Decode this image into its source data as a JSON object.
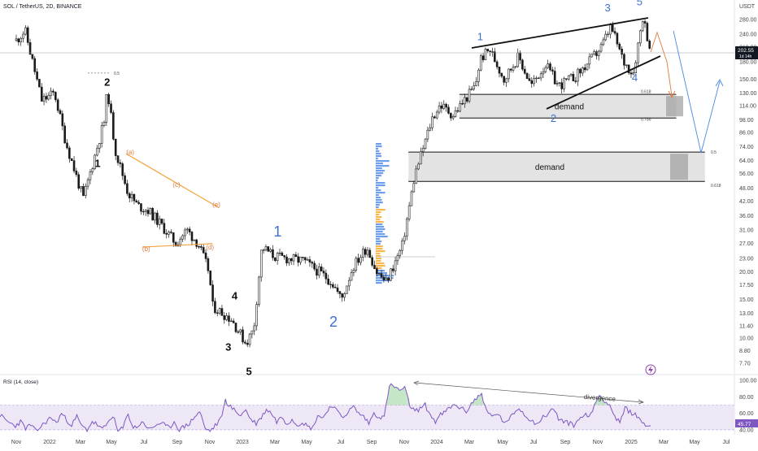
{
  "header": {
    "title": "SOL / TetherUS, 2D, BINANCE",
    "currency": "USDT"
  },
  "price_badge": {
    "value": "202.55",
    "sub": "1d 14h",
    "color": "#131722"
  },
  "colors": {
    "candle": "#1a1a1a",
    "rsi_line": "#7e57c2",
    "rsi_band": "#ede7f6",
    "blue": "#3d6fd0",
    "orange": "#f4a340",
    "demand": "#d9d9d9",
    "volume_profile": "#4a86e8"
  },
  "chart_data": [
    {
      "type": "line",
      "scale": "log",
      "ylim": [
        7.0,
        320
      ],
      "y_ticks": [
        "280.00",
        "240.00",
        "210.00",
        "180.00",
        "150.00",
        "130.00",
        "114.00",
        "98.00",
        "86.00",
        "74.00",
        "64.00",
        "56.00",
        "48.00",
        "42.00",
        "36.00",
        "31.00",
        "27.00",
        "23.00",
        "20.00",
        "17.50",
        "15.00",
        "13.00",
        "11.40",
        "10.00",
        "8.80",
        "7.70"
      ],
      "x_ticks": [
        "Nov",
        "2022",
        "Mar",
        "May",
        "Jul",
        "Sep",
        "Nov",
        "2023",
        "Mar",
        "May",
        "Jul",
        "Sep",
        "Nov",
        "2024",
        "Mar",
        "May",
        "Jul",
        "Sep",
        "Nov",
        "2025",
        "Mar",
        "May",
        "Jul"
      ],
      "price_points": [
        [
          0,
          225
        ],
        [
          0.55,
          250
        ],
        [
          1.6,
          120
        ],
        [
          2.4,
          130
        ],
        [
          3.1,
          78
        ],
        [
          4.2,
          43
        ],
        [
          5.6,
          102
        ],
        [
          5.7,
          140
        ],
        [
          6.2,
          72
        ],
        [
          7,
          46
        ],
        [
          7.6,
          40
        ],
        [
          8.3,
          38
        ],
        [
          9.2,
          32
        ],
        [
          10,
          27
        ],
        [
          10.7,
          31
        ],
        [
          11.4,
          27
        ],
        [
          12.1,
          20
        ],
        [
          12.3,
          14
        ],
        [
          13.5,
          12.2
        ],
        [
          14.4,
          9.5
        ],
        [
          14.9,
          11
        ],
        [
          15.4,
          26
        ],
        [
          16.2,
          23.5
        ],
        [
          17,
          23
        ],
        [
          18,
          22.5
        ],
        [
          19,
          20
        ],
        [
          19.8,
          18
        ],
        [
          20.4,
          15
        ],
        [
          21.1,
          21
        ],
        [
          22,
          26
        ],
        [
          22.6,
          20
        ],
        [
          23.2,
          18
        ],
        [
          24.2,
          26
        ],
        [
          25,
          55
        ],
        [
          26.1,
          100
        ],
        [
          26.6,
          115
        ],
        [
          27.4,
          103
        ],
        [
          28.1,
          120
        ],
        [
          28.8,
          140
        ],
        [
          29.1,
          185
        ],
        [
          29.7,
          205
        ],
        [
          30.6,
          150
        ],
        [
          31.5,
          190
        ],
        [
          32.3,
          140
        ],
        [
          33.2,
          175
        ],
        [
          34,
          140
        ],
        [
          35.1,
          155
        ],
        [
          35.8,
          175
        ],
        [
          36.7,
          210
        ],
        [
          37.3,
          260
        ],
        [
          38.1,
          180
        ],
        [
          38.7,
          160
        ],
        [
          39.3,
          290
        ],
        [
          39.8,
          202
        ]
      ],
      "series": [
        {
          "name": "",
          "values": []
        }
      ],
      "waves": [
        {
          "label": "2",
          "color": "black",
          "x": 5.7,
          "price": 140
        },
        {
          "label": "1",
          "color": "black",
          "x": 5.1,
          "price": 60
        },
        {
          "label": "4",
          "color": "black",
          "x": 13.7,
          "price": 15
        },
        {
          "label": "3",
          "color": "black",
          "x": 13.3,
          "price": 8.8
        },
        {
          "label": "5",
          "color": "black",
          "x": 14.6,
          "price": 6.8
        },
        {
          "label": "1",
          "color": "blue",
          "x": 16.4,
          "price": 29
        },
        {
          "label": "2",
          "color": "blue",
          "x": 19.9,
          "price": 11.3
        },
        {
          "label": "1",
          "color": "blue-sm",
          "x": 29.1,
          "price": 225
        },
        {
          "label": "2",
          "color": "blue-sm",
          "x": 33.7,
          "price": 96
        },
        {
          "label": "3",
          "color": "blue-sm",
          "x": 37.1,
          "price": 305
        },
        {
          "label": "4",
          "color": "blue-sm",
          "x": 38.8,
          "price": 147
        },
        {
          "label": "5",
          "color": "blue-sm",
          "x": 39.1,
          "price": 325
        }
      ],
      "abcde": [
        {
          "label": "(a)",
          "x": 7.0,
          "price": 70
        },
        {
          "label": "(b)",
          "x": 8.0,
          "price": 25.5
        },
        {
          "label": "(c)",
          "x": 9.9,
          "price": 50
        },
        {
          "label": "(d)",
          "x": 12.0,
          "price": 26
        },
        {
          "label": "(e)",
          "x": 12.4,
          "price": 40.5
        }
      ],
      "zones": [
        {
          "label": "demand",
          "top": 128,
          "bottom": 100,
          "x_start": 27.8,
          "x_end": 41.4
        },
        {
          "label": "demand",
          "top": 70,
          "bottom": 51.5,
          "x_start": 24.6,
          "x_end": 43.2
        }
      ],
      "fib_levels": [
        {
          "label": "0.5",
          "x": 6.9,
          "price": 160
        },
        {
          "label": "0.618",
          "x": 39.0,
          "price": 132
        },
        {
          "label": "0.786",
          "x": 39.0,
          "price": 99
        },
        {
          "label": "0.5",
          "x": 43.5,
          "price": 70
        },
        {
          "label": "0.618",
          "x": 43.5,
          "price": 49.5
        }
      ],
      "annotations": [
        "divergence"
      ]
    },
    {
      "type": "line",
      "title": "RSI (14, close)",
      "ylim": [
        37,
        102
      ],
      "y_ticks": [
        "100.00",
        "80.00",
        "60.00",
        "40.00"
      ],
      "last_value": "45.77",
      "band": [
        40,
        70
      ],
      "values": [
        58,
        52,
        48,
        45,
        50,
        42,
        46,
        38,
        44,
        50,
        55,
        48,
        60,
        52,
        46,
        56,
        44,
        40,
        50,
        46,
        40,
        48,
        58,
        38,
        42,
        60,
        42,
        45,
        50,
        40,
        44,
        48,
        46,
        42,
        50,
        40,
        44,
        48,
        56,
        62,
        42,
        38,
        45,
        52,
        75,
        68,
        62,
        58,
        64,
        52,
        48,
        55,
        65,
        60,
        50,
        56,
        48,
        53,
        46,
        50,
        44,
        42,
        58,
        54,
        65,
        70,
        60,
        56,
        62,
        68,
        60,
        56,
        48,
        60,
        56,
        55,
        94,
        92,
        88,
        90,
        70,
        62,
        66,
        70,
        58,
        50,
        58,
        62,
        68,
        70,
        66,
        62,
        72,
        78,
        84,
        62,
        56,
        60,
        52,
        48,
        58,
        66,
        62,
        55,
        50,
        48,
        55,
        60,
        66,
        54,
        50,
        48,
        46,
        52,
        60,
        54,
        70,
        82,
        76,
        70,
        56,
        48,
        66,
        62,
        58,
        52,
        46,
        45
      ]
    }
  ]
}
